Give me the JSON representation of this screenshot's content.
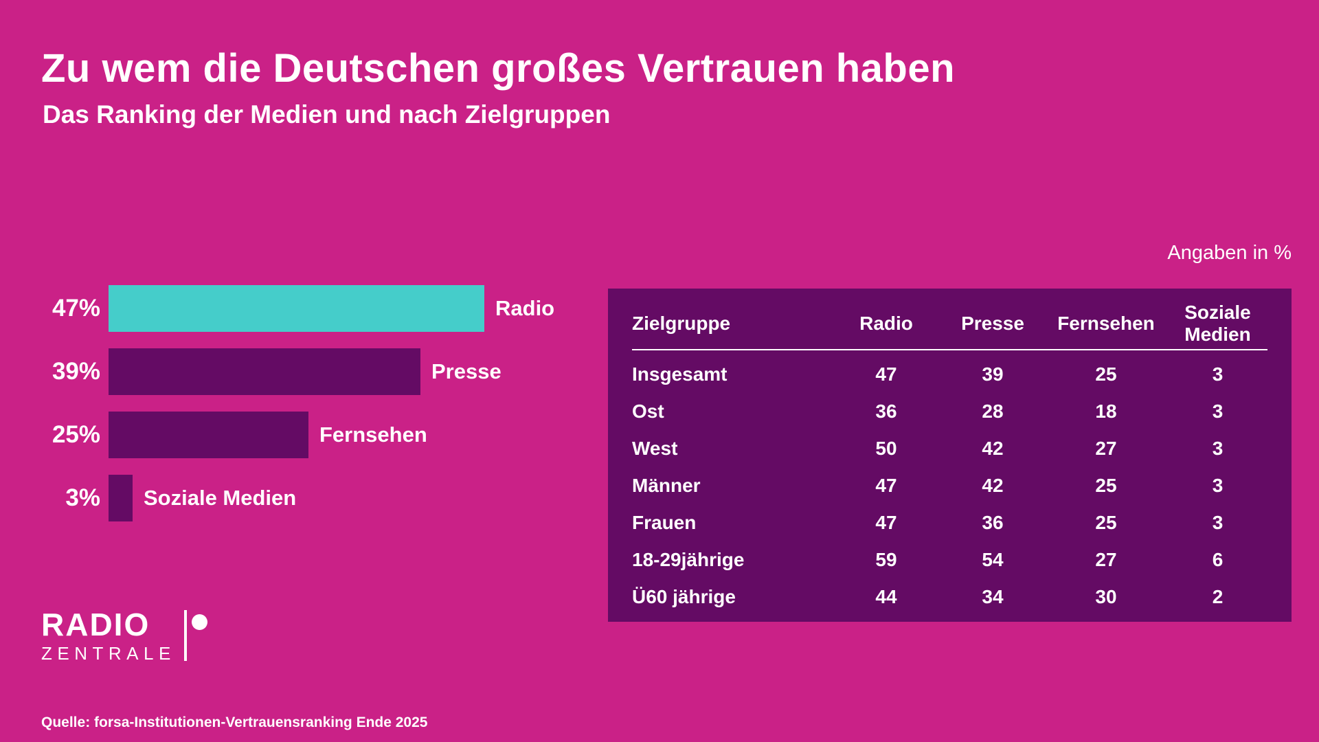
{
  "colors": {
    "background": "#CA2187",
    "accent_teal": "#45CDCA",
    "dark_purple": "#640B64",
    "text": "#FFFFFF"
  },
  "header": {
    "title": "Zu wem die Deutschen großes Vertrauen haben",
    "subtitle": "Das Ranking der Medien und nach Zielgruppen"
  },
  "unit_note": "Angaben in %",
  "bar_chart": {
    "bars": [
      {
        "value_label": "47%",
        "value": 47,
        "label": "Radio",
        "highlight": true
      },
      {
        "value_label": "39%",
        "value": 39,
        "label": "Presse",
        "highlight": false
      },
      {
        "value_label": "25%",
        "value": 25,
        "label": "Fernsehen",
        "highlight": false
      },
      {
        "value_label": "3%",
        "value": 3,
        "label": "Soziale Medien",
        "highlight": false
      }
    ]
  },
  "table": {
    "columns": [
      "Zielgruppe",
      "Radio",
      "Presse",
      "Fernsehen",
      "Soziale Medien"
    ],
    "rows": [
      {
        "label": "Insgesamt",
        "values": [
          "47",
          "39",
          "25",
          "3"
        ]
      },
      {
        "label": "Ost",
        "values": [
          "36",
          "28",
          "18",
          "3"
        ]
      },
      {
        "label": "West",
        "values": [
          "50",
          "42",
          "27",
          "3"
        ]
      },
      {
        "label": "Männer",
        "values": [
          "47",
          "42",
          "25",
          "3"
        ]
      },
      {
        "label": "Frauen",
        "values": [
          "47",
          "36",
          "25",
          "3"
        ]
      },
      {
        "label": "18-29jährige",
        "values": [
          "59",
          "54",
          "27",
          "6"
        ]
      },
      {
        "label": "Ü60 jährige",
        "values": [
          "44",
          "34",
          "30",
          "2"
        ]
      }
    ]
  },
  "logo": {
    "line1": "RADIO",
    "line2": "ZENTRALE"
  },
  "source": "Quelle: forsa-Institutionen-Vertrauensranking Ende 2025",
  "chart_data": [
    {
      "type": "bar",
      "orientation": "horizontal",
      "title": "Zu wem die Deutschen großes Vertrauen haben",
      "subtitle": "Das Ranking der Medien und nach Zielgruppen",
      "unit": "%",
      "categories": [
        "Radio",
        "Presse",
        "Fernsehen",
        "Soziale Medien"
      ],
      "values": [
        47,
        39,
        25,
        3
      ],
      "xlim": [
        0,
        50
      ],
      "grid": false,
      "bar_colors": [
        "#45CDCA",
        "#640B64",
        "#640B64",
        "#640B64"
      ],
      "value_labels": [
        "47%",
        "39%",
        "25%",
        "3%"
      ],
      "annotation": "Angaben in %",
      "source": "Quelle: forsa-Institutionen-Vertrauensranking Ende 2025"
    },
    {
      "type": "table",
      "columns": [
        "Zielgruppe",
        "Radio",
        "Presse",
        "Fernsehen",
        "Soziale Medien"
      ],
      "rows": [
        [
          "Insgesamt",
          47,
          39,
          25,
          3
        ],
        [
          "Ost",
          36,
          28,
          18,
          3
        ],
        [
          "West",
          50,
          42,
          27,
          3
        ],
        [
          "Männer",
          47,
          42,
          25,
          3
        ],
        [
          "Frauen",
          47,
          36,
          25,
          3
        ],
        [
          "18-29jährige",
          59,
          54,
          27,
          6
        ],
        [
          "Ü60 jährige",
          44,
          34,
          30,
          2
        ]
      ],
      "unit": "%"
    }
  ]
}
